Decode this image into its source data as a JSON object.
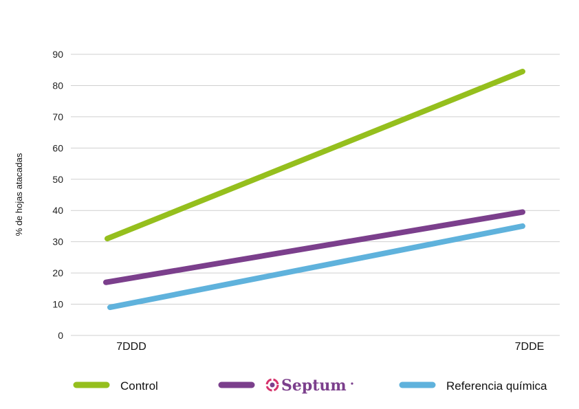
{
  "chart_data": {
    "type": "line",
    "ylabel": "% de hojas atacadas",
    "xlabel": "",
    "ylim": [
      0,
      90
    ],
    "yticks": [
      0,
      10,
      20,
      30,
      40,
      50,
      60,
      70,
      80,
      90
    ],
    "grid": true,
    "legend_position": "bottom",
    "categories": [
      "7DDD",
      "7DDE"
    ],
    "series": [
      {
        "name": "Control",
        "values": [
          31,
          84.5
        ],
        "color": "#95bf1d",
        "legend_kind": "text"
      },
      {
        "name": "Septum",
        "values": [
          17,
          39.5
        ],
        "color": "#7b3f8c",
        "legend_kind": "logo"
      },
      {
        "name": "Referencia química",
        "values": [
          9,
          35
        ],
        "color": "#5fb2dc",
        "legend_kind": "text"
      }
    ]
  }
}
